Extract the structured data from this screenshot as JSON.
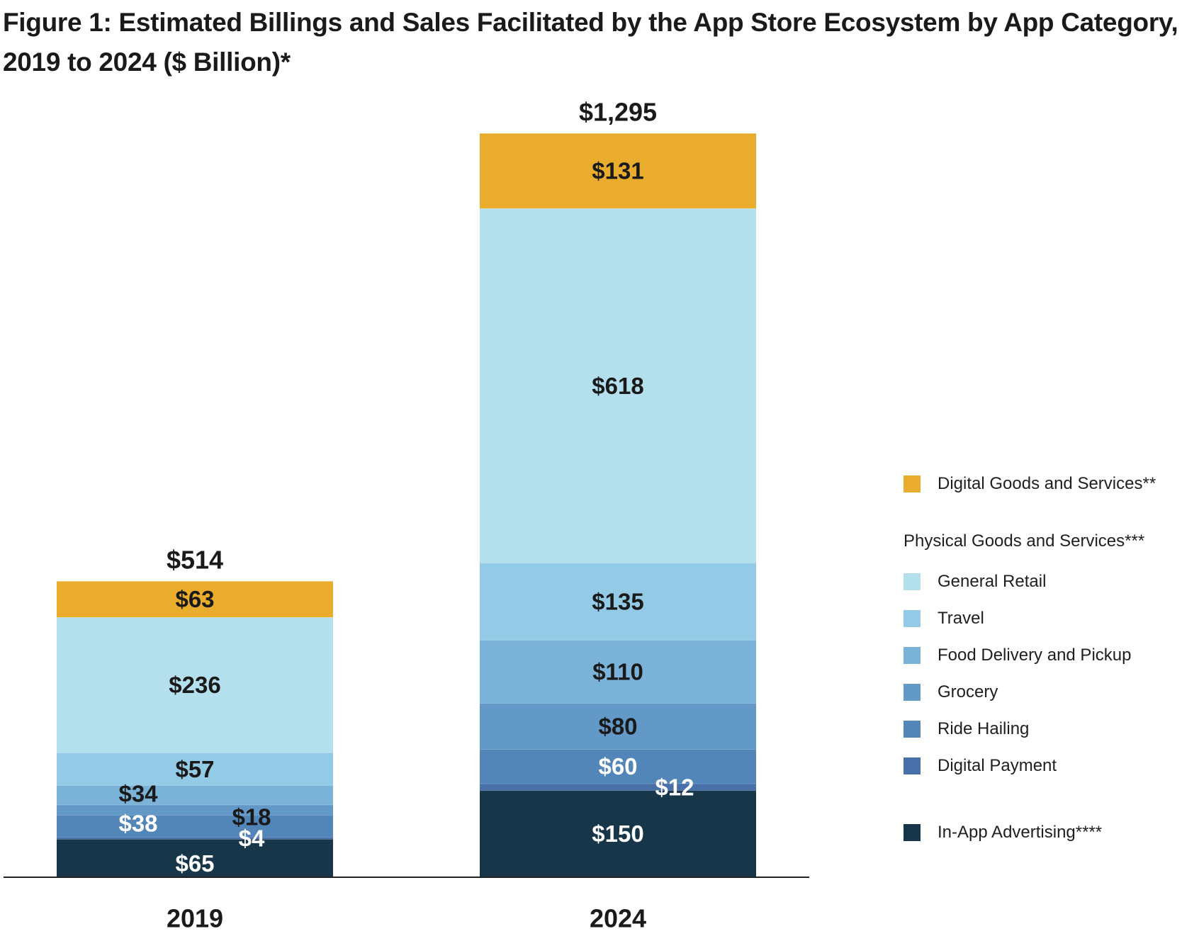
{
  "title": "Figure 1: Estimated Billings and Sales Facilitated by the App Store Ecosystem by App Category, 2019 to 2024 ($ Billion)*",
  "chart_data": {
    "type": "bar",
    "stacked": true,
    "title": "Figure 1: Estimated Billings and Sales Facilitated by the App Store Ecosystem by App Category, 2019 to 2024 ($ Billion)*",
    "xlabel": "",
    "ylabel": "",
    "categories": [
      "2019",
      "2024"
    ],
    "ylim": [
      0,
      1295
    ],
    "grid": false,
    "legend_position": "right",
    "totals": [
      514,
      1295
    ],
    "total_labels": [
      "$514",
      "$1,295"
    ],
    "series": [
      {
        "name": "In-App Advertising****",
        "color": "#17364a",
        "values": [
          65,
          150
        ],
        "labels": [
          "$65",
          "$150"
        ],
        "label_color": "#ffffff"
      },
      {
        "name": "Digital Payment",
        "color": "#4a70aa",
        "values": [
          4,
          12
        ],
        "labels": [
          "$4",
          "$12"
        ],
        "label_color": "#ffffff"
      },
      {
        "name": "Ride Hailing",
        "color": "#5286b9",
        "values": [
          38,
          60
        ],
        "labels": [
          "$38",
          "$60"
        ],
        "label_color": "#ffffff"
      },
      {
        "name": "Grocery",
        "color": "#6399c7",
        "values": [
          18,
          80
        ],
        "labels": [
          "$18",
          "$80"
        ],
        "label_color": "#1a1a1a"
      },
      {
        "name": "Food Delivery and Pickup",
        "color": "#7bb2d7",
        "values": [
          34,
          110
        ],
        "labels": [
          "$34",
          "$110"
        ],
        "label_color": "#1a1a1a"
      },
      {
        "name": "Travel",
        "color": "#93cae5",
        "values": [
          57,
          135
        ],
        "labels": [
          "$57",
          "$135"
        ],
        "label_color": "#1a1a1a"
      },
      {
        "name": "General Retail",
        "color": "#b4dfec",
        "values": [
          236,
          618
        ],
        "labels": [
          "$236",
          "$618"
        ],
        "label_color": "#1a1a1a"
      },
      {
        "name": "Digital Goods and Services**",
        "color": "#e9ac2d",
        "values": [
          63,
          131
        ],
        "labels": [
          "$63",
          "$131"
        ],
        "label_color": "#1a1a1a"
      }
    ]
  },
  "legend": {
    "digital_goods": {
      "label": "Digital Goods and Services**",
      "color": "#e9ac2d"
    },
    "physical_heading": "Physical Goods and Services***",
    "physical_items": [
      {
        "label": "General Retail",
        "color": "#b4dfec"
      },
      {
        "label": "Travel",
        "color": "#93cae5"
      },
      {
        "label": "Food Delivery and Pickup",
        "color": "#7bb2d7"
      },
      {
        "label": "Grocery",
        "color": "#6399c7"
      },
      {
        "label": "Ride Hailing",
        "color": "#5286b9"
      },
      {
        "label": "Digital Payment",
        "color": "#4a70aa"
      }
    ],
    "advertising": {
      "label": "In-App Advertising****",
      "color": "#17364a"
    }
  }
}
